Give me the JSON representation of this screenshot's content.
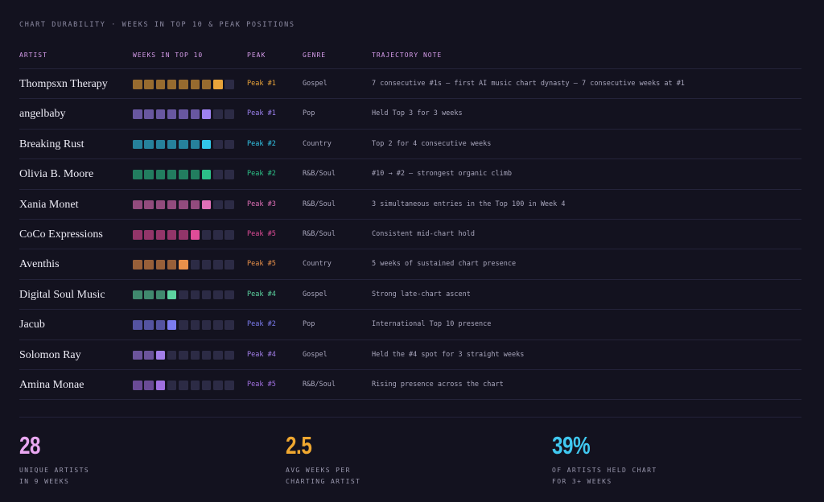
{
  "header": {
    "title": "CHART DURABILITY · WEEKS IN TOP 10 & PEAK POSITIONS"
  },
  "table": {
    "columns": [
      "ARTIST",
      "WEEKS IN TOP 10",
      "PEAK",
      "GENRE",
      "TRAJECTORY NOTE"
    ],
    "rows": [
      {
        "artist": "Thompsxn Therapy",
        "weeks": 8,
        "peak": "Peak #1",
        "genre": "Gospel",
        "note": "7 consecutive #1s — first AI music chart dynasty — 7 consecutive weeks at #1",
        "color": "#e8a33a"
      },
      {
        "artist": "angelbaby",
        "weeks": 7,
        "peak": "Peak #1",
        "genre": "Pop",
        "note": "Held Top 3 for 3 weeks",
        "color": "#9d82f0"
      },
      {
        "artist": "Breaking Rust",
        "weeks": 7,
        "peak": "Peak #2",
        "genre": "Country",
        "note": "Top 2 for 4 consecutive weeks",
        "color": "#32c6e8"
      },
      {
        "artist": "Olivia B. Moore",
        "weeks": 7,
        "peak": "Peak #2",
        "genre": "R&B/Soul",
        "note": "#10 → #2 — strongest organic climb",
        "color": "#2cc088"
      },
      {
        "artist": "Xania Monet",
        "weeks": 7,
        "peak": "Peak #3",
        "genre": "R&B/Soul",
        "note": "3 simultaneous entries in the Top 100 in Week 4",
        "color": "#e070b8"
      },
      {
        "artist": "CoCo Expressions",
        "weeks": 6,
        "peak": "Peak #5",
        "genre": "R&B/Soul",
        "note": "Consistent mid-chart hold",
        "color": "#e04c98"
      },
      {
        "artist": "Aventhis",
        "weeks": 5,
        "peak": "Peak #5",
        "genre": "Country",
        "note": "5 weeks of sustained chart presence",
        "color": "#e8904a"
      },
      {
        "artist": "Digital Soul Music",
        "weeks": 4,
        "peak": "Peak #4",
        "genre": "Gospel",
        "note": "Strong late-chart ascent",
        "color": "#5cd4a0"
      },
      {
        "artist": "Jacub",
        "weeks": 4,
        "peak": "Peak #2",
        "genre": "Pop",
        "note": "International Top 10 presence",
        "color": "#7c7cf0"
      },
      {
        "artist": "Solomon Ray",
        "weeks": 3,
        "peak": "Peak #4",
        "genre": "Gospel",
        "note": "Held the #4 spot for 3 straight weeks",
        "color": "#a27ee8"
      },
      {
        "artist": "Amina Monae",
        "weeks": 3,
        "peak": "Peak #5",
        "genre": "R&B/Soul",
        "note": "Rising presence across the chart",
        "color": "#a070e0"
      }
    ]
  },
  "stats": [
    {
      "value": "28",
      "label": [
        "UNIQUE ARTISTS",
        "IN 9 WEEKS"
      ],
      "color": "#eaa8f2"
    },
    {
      "value": "2.5",
      "label": [
        "AVG WEEKS PER",
        "CHARTING ARTIST"
      ],
      "color": "#f0a830"
    },
    {
      "value": "39%",
      "label": [
        "OF ARTISTS HELD CHART",
        "FOR 3+ WEEKS"
      ],
      "color": "#40c8f0"
    }
  ]
}
